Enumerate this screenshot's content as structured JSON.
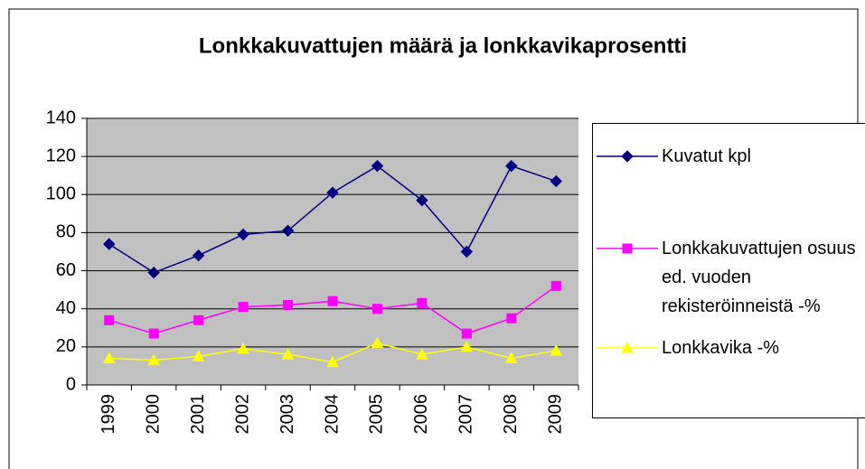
{
  "chart_data": {
    "type": "line",
    "title": "Lonkkakuvattujen määrä ja lonkkavikaprosentti",
    "categories": [
      "1999",
      "2000",
      "2001",
      "2002",
      "2003",
      "2004",
      "2005",
      "2006",
      "2007",
      "2008",
      "2009"
    ],
    "series": [
      {
        "name": "Kuvatut kpl",
        "color": "#000080",
        "marker": "diamond",
        "values": [
          74,
          59,
          68,
          79,
          81,
          101,
          115,
          97,
          70,
          115,
          107
        ]
      },
      {
        "name": "Lonkkakuvattujen osuus ed. vuoden rekisteröinneistä -%",
        "color": "#ff00ff",
        "marker": "square",
        "values": [
          34,
          27,
          34,
          41,
          42,
          44,
          40,
          43,
          27,
          35,
          52
        ]
      },
      {
        "name": "Lonkkavika -%",
        "color": "#ffff00",
        "marker": "triangle",
        "values": [
          14,
          13,
          15,
          19,
          16,
          12,
          22,
          16,
          20,
          14,
          18
        ]
      }
    ],
    "ylim": [
      0,
      140
    ],
    "yticks": [
      0,
      20,
      40,
      60,
      80,
      100,
      120,
      140
    ],
    "grid": true,
    "legend": "right"
  }
}
